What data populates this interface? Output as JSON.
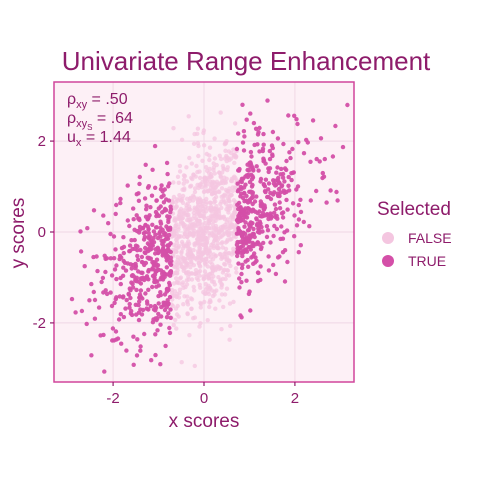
{
  "chart_data": {
    "type": "scatter",
    "title": "Univariate Range Enhancement",
    "xlabel": "x scores",
    "ylabel": "y scores",
    "xlim": [
      -3.3,
      3.3
    ],
    "ylim": [
      -3.3,
      3.3
    ],
    "x_ticks": [
      -2,
      0,
      2
    ],
    "y_ticks": [
      -2,
      0,
      2
    ],
    "x_tick_labels": [
      "-2",
      "0",
      "2"
    ],
    "y_tick_labels": [
      "-2",
      "0",
      "2"
    ],
    "grid": true,
    "legend": {
      "title": "Selected",
      "placement": "right",
      "entries": [
        "FALSE",
        "TRUE"
      ]
    },
    "annotation": {
      "rho_xy_label": "ρ",
      "rho_xy_sub": "xy",
      "rho_xy_value": " = .50",
      "rho_xys_label": "ρ",
      "rho_xys_sub": "xy",
      "rho_xys_subsub": "S",
      "rho_xys_value": " = .64",
      "u_x_label": "u",
      "u_x_sub": "x",
      "u_x_value": " = 1.44"
    },
    "colors": {
      "title": "#8e1c6b",
      "axis_text": "#8e1c6b",
      "panel_border": "#d0459b",
      "panel_fill": "#fdf0f6",
      "grid": "#f2dbe8",
      "false_point": "#f4c6e0",
      "true_point": "#d44fa8"
    },
    "series": [
      {
        "name": "FALSE",
        "n": 900,
        "rule": "|x| < 0.72, bivariate normal with correlation .50",
        "x": [],
        "y": []
      },
      {
        "name": "TRUE",
        "n": 850,
        "rule": "|x| >= 0.72, bivariate normal with correlation .50",
        "x": [],
        "y": []
      }
    ]
  }
}
